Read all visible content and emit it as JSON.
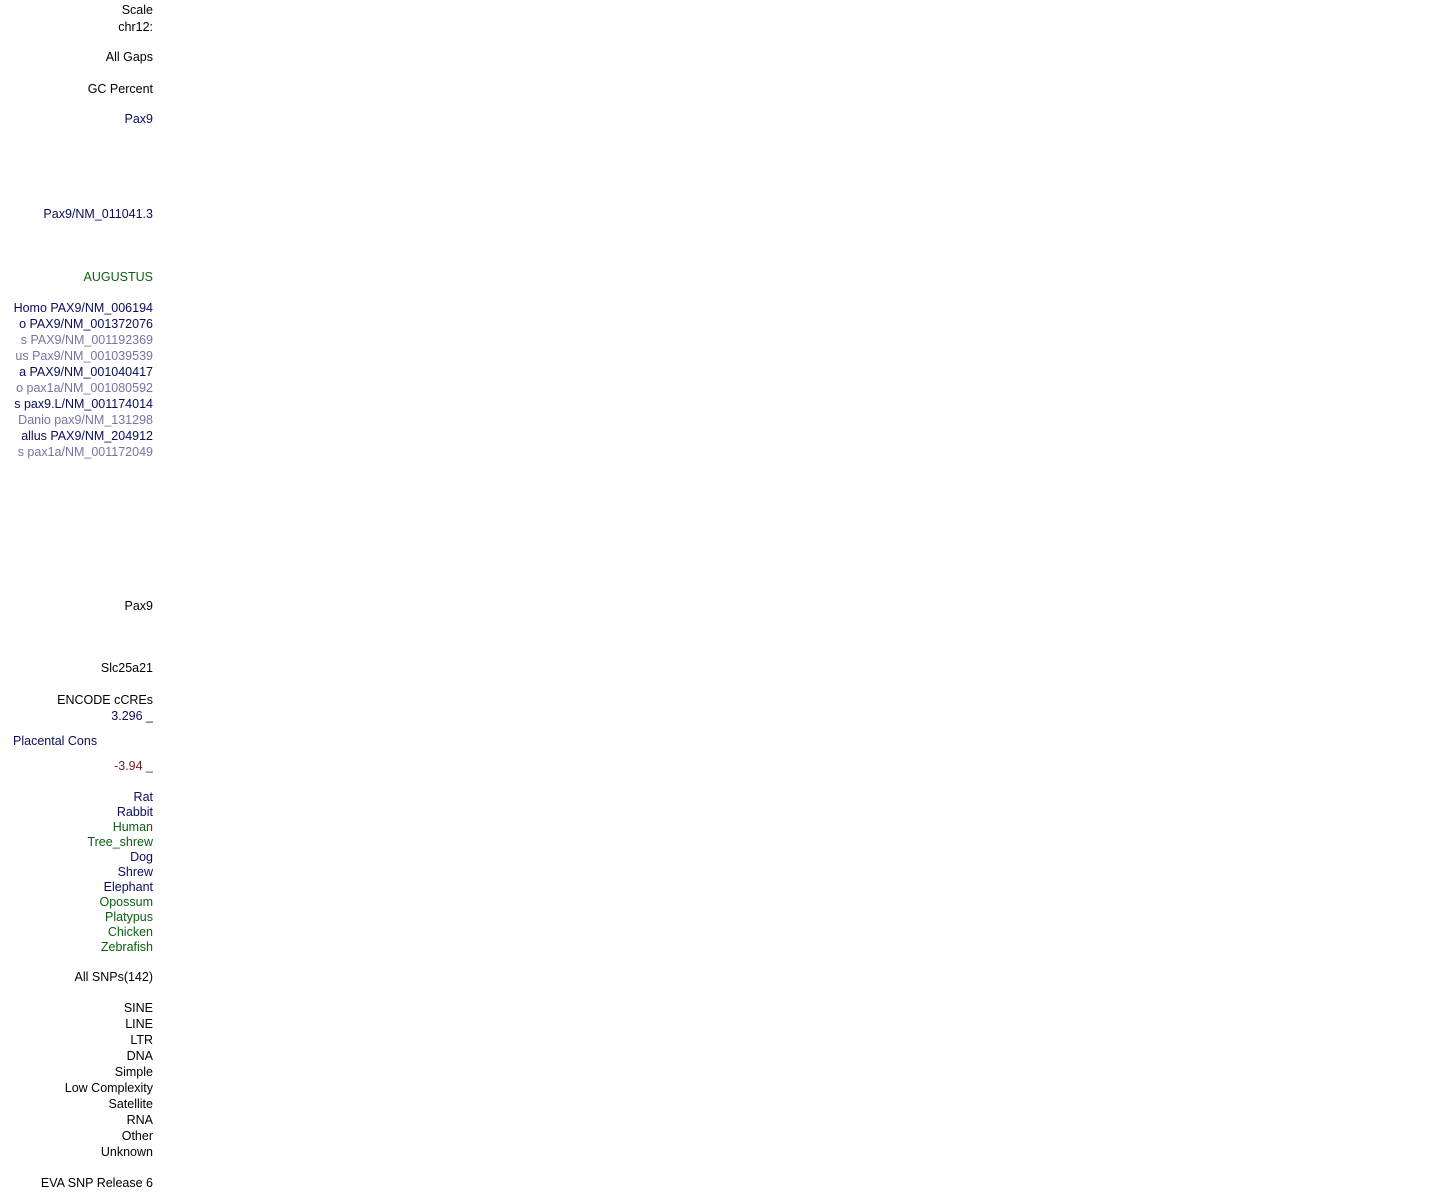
{
  "labels": [
    "Scale",
    "chr12:",
    "All Gaps",
    "GC Percent",
    "Pax9",
    "Pax9/NM_011041.3",
    "AUGUSTUS",
    "Homo PAX9/NM_006194",
    "o PAX9/NM_001372076",
    "s PAX9/NM_001192369",
    "us Pax9/NM_001039539",
    "a PAX9/NM_001040417",
    "o pax1a/NM_001080592",
    "s pax9.L/NM_001174014",
    "Danio pax9/NM_131298",
    "allus PAX9/NM_204912",
    "s pax1a/NM_001172049",
    "Pax9",
    "Slc25a21",
    "ENCODE cCREs",
    "3.296 _",
    "Placental Cons",
    "-3.94 _",
    "Rat",
    "Rabbit",
    "Human",
    "Tree_shrew",
    "Dog",
    "Shrew",
    "Elephant",
    "Opossum",
    "Platypus",
    "Chicken",
    "Zebrafish",
    "All SNPs(142)",
    "SINE",
    "LINE",
    "LTR",
    "DNA",
    "Simple",
    "Low Complexity",
    "Satellite",
    "RNA",
    "Other",
    "Unknown",
    "EVA SNP Release 6"
  ]
}
